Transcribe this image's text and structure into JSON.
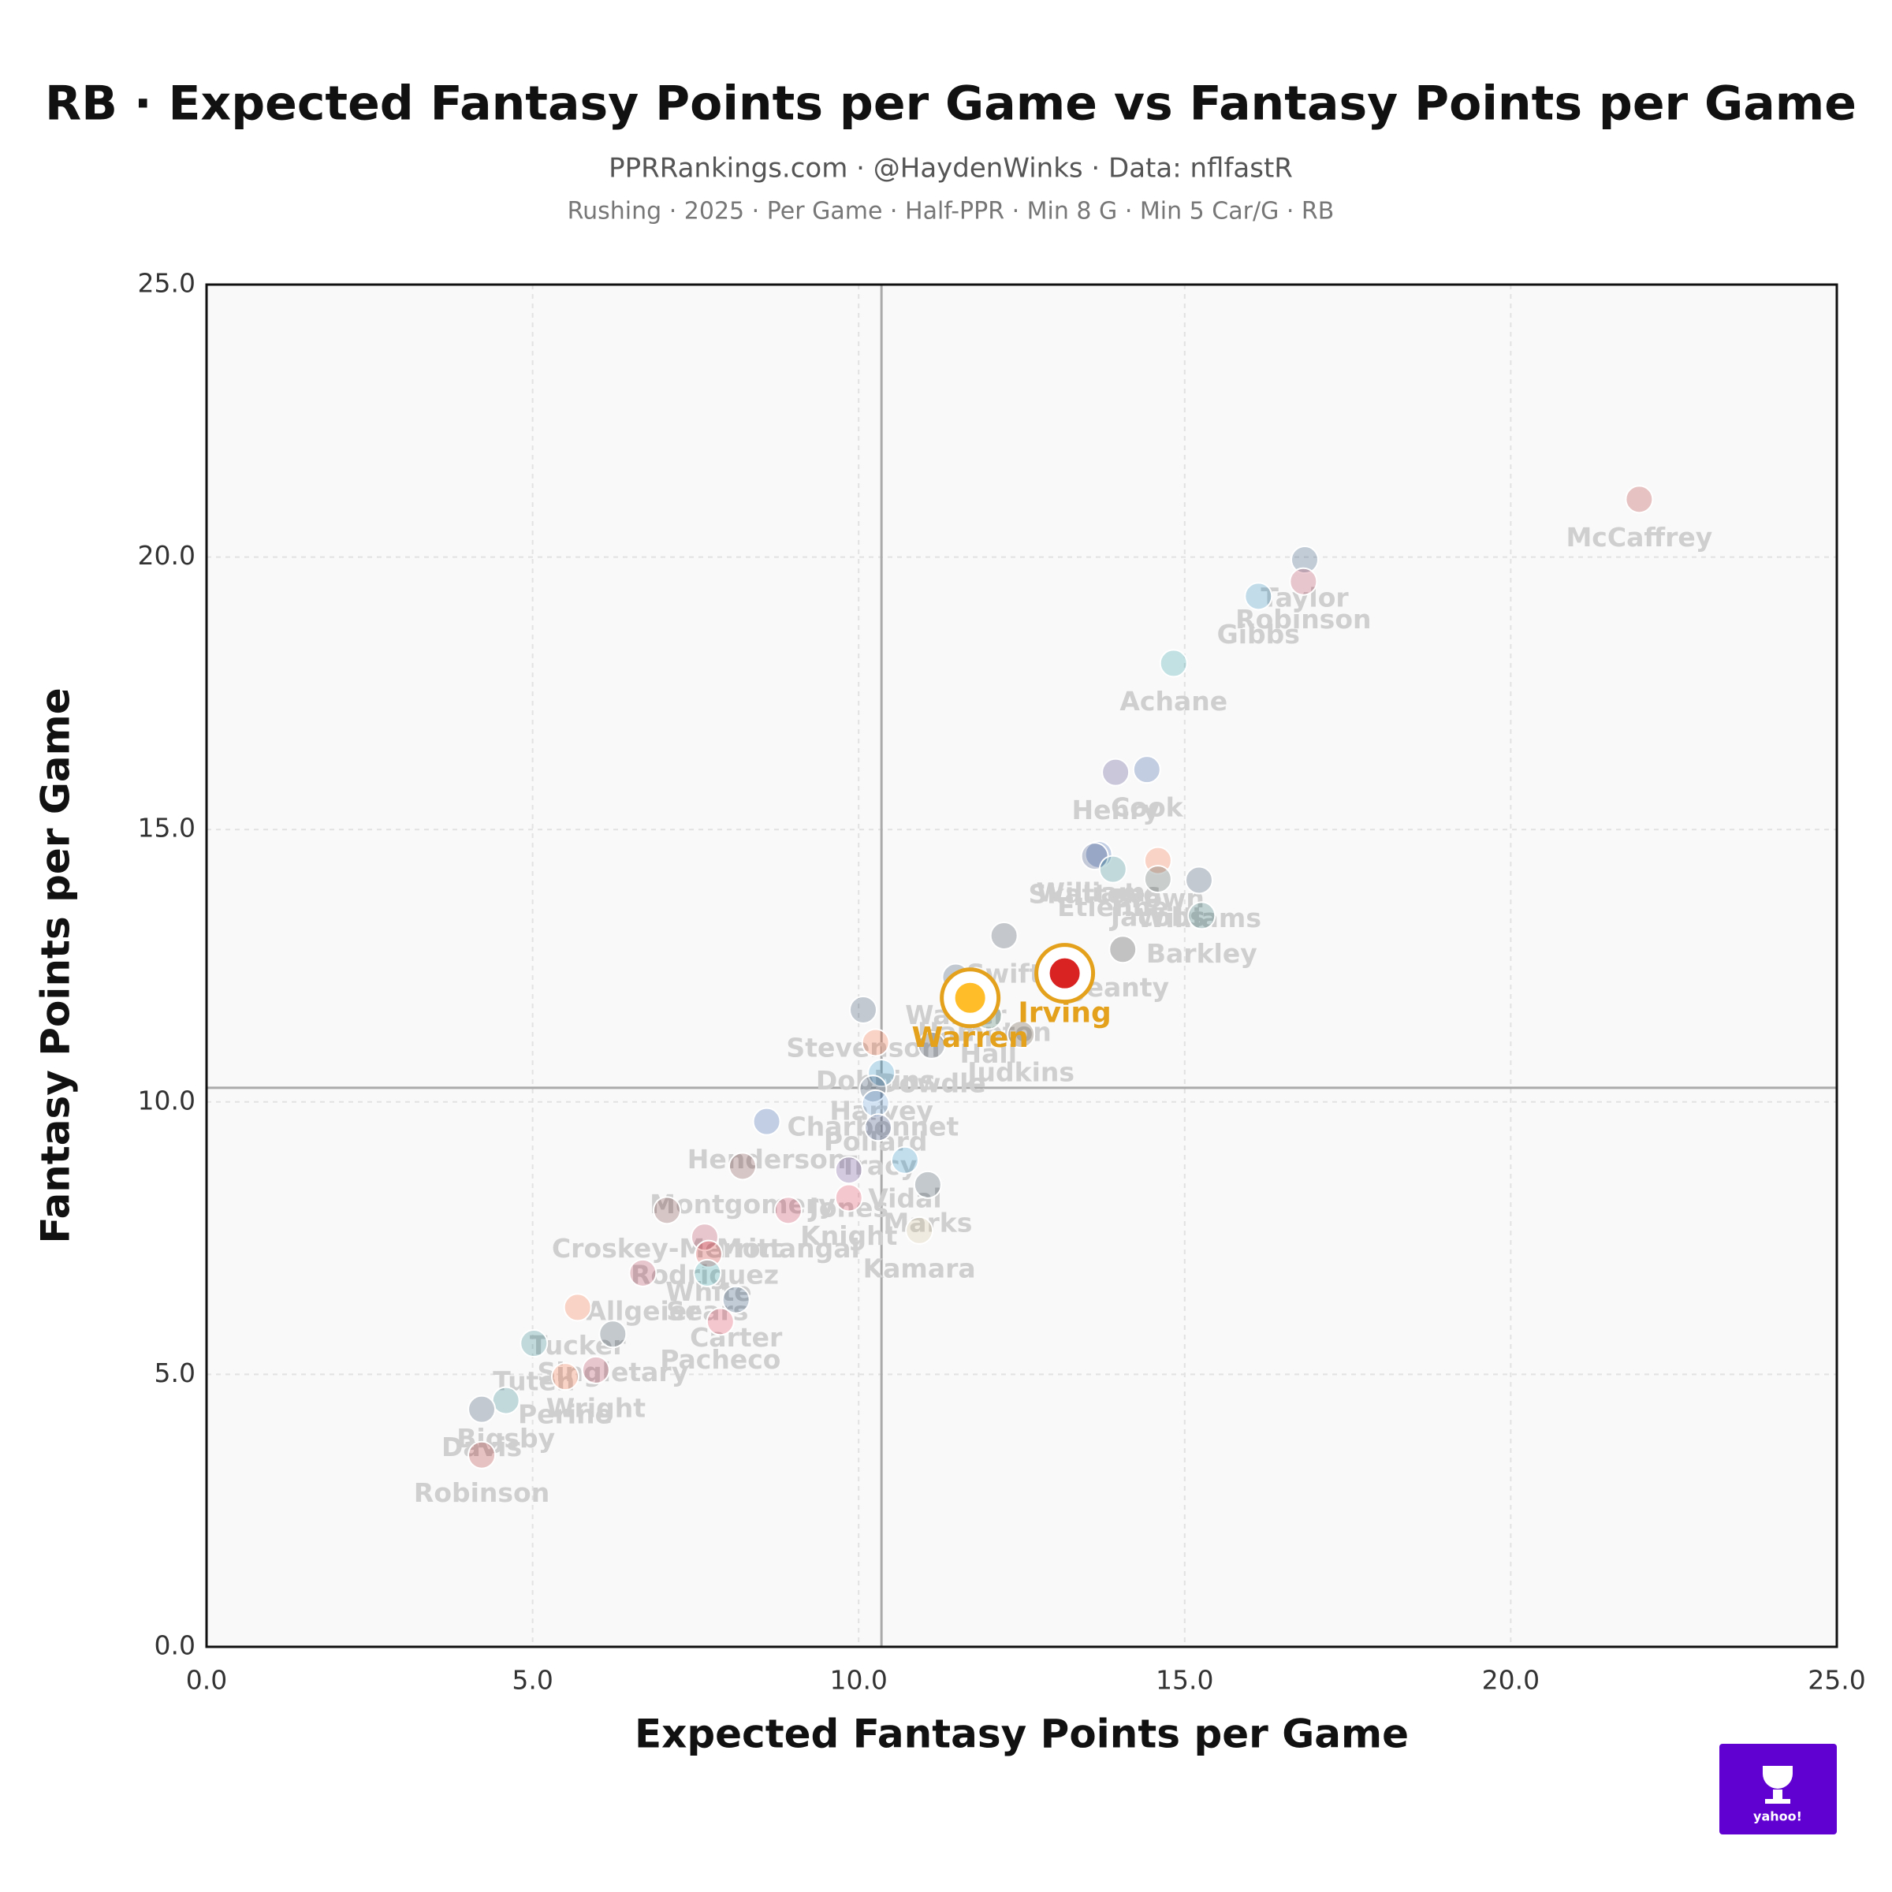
{
  "chart_data": {
    "type": "scatter",
    "title": "RB · Expected Fantasy Points per Game vs Fantasy Points per Game",
    "subtitle": "PPRRankings.com · @HaydenWinks · Data: nflfastR",
    "subtitle2": "Rushing · 2025 · Per Game · Half-PPR · Min 8 G · Min 5 Car/G · RB",
    "x_label": "Expected Fantasy Points per Game",
    "y_label": "Fantasy Points per Game",
    "logo_text": "yahoo!",
    "xlim": [
      0,
      25
    ],
    "ylim": [
      0,
      25
    ],
    "xticks": [
      {
        "value": 0,
        "label": "0.0"
      },
      {
        "value": 5,
        "label": "5.0"
      },
      {
        "value": 10,
        "label": "10.0"
      },
      {
        "value": 15,
        "label": "15.0"
      },
      {
        "value": 20,
        "label": "20.0"
      },
      {
        "value": 25,
        "label": "25.0"
      }
    ],
    "yticks": [
      {
        "value": 0,
        "label": "0.0"
      },
      {
        "value": 5,
        "label": "5.0"
      },
      {
        "value": 10,
        "label": "10.0"
      },
      {
        "value": 15,
        "label": "15.0"
      },
      {
        "value": 20,
        "label": "20.0"
      },
      {
        "value": 25,
        "label": "25.0"
      }
    ],
    "grid": true,
    "x_mean": 10.35,
    "y_mean": 10.26,
    "highlight_color": "#e3a11c",
    "labels": [
      "McCaffrey",
      "Taylor",
      "Robinson",
      "Gibbs",
      "Achane",
      "Henry",
      "Cook",
      "Williams",
      "Skattebo",
      "Etienne",
      "Brown",
      "Jacobs",
      "Williams",
      "Barkley",
      "Jeanty",
      "Swift",
      "Irving",
      "Warren",
      "Walker",
      "Hampton",
      "Hall",
      "Judkins",
      "Stevenson",
      "Dobbins",
      "Dowdle",
      "Harvey",
      "Charbonnet",
      "Pollard",
      "Henderson",
      "Tracy",
      "Vidal",
      "Marks",
      "Kamara",
      "Montgomery",
      "Jones",
      "Knight",
      "Croskey-Merritt",
      "Monangai",
      "Rodriguez",
      "White",
      "Allgeier",
      "Sears",
      "Carter",
      "Pacheco",
      "Tucker",
      "Singletary",
      "Tuten",
      "Wright",
      "Perine",
      "Bigsby",
      "Davis",
      "Robinson"
    ],
    "x": [
      21.97,
      16.84,
      16.82,
      16.13,
      14.83,
      13.94,
      14.42,
      13.68,
      13.62,
      13.9,
      14.59,
      14.59,
      15.22,
      15.26,
      14.05,
      12.23,
      13.16,
      11.71,
      11.49,
      11.93,
      11.99,
      12.49,
      10.07,
      10.26,
      11.12,
      10.35,
      10.22,
      10.26,
      8.59,
      10.3,
      10.71,
      11.06,
      10.93,
      8.22,
      9.85,
      9.85,
      7.06,
      8.92,
      7.64,
      7.7,
      6.69,
      7.68,
      8.12,
      7.88,
      5.69,
      6.23,
      5.02,
      5.97,
      5.5,
      4.59,
      4.22,
      4.22
    ],
    "values": [
      21.06,
      19.95,
      19.55,
      19.28,
      18.05,
      16.05,
      16.1,
      14.54,
      14.51,
      14.27,
      14.43,
      14.09,
      14.07,
      13.42,
      12.8,
      13.05,
      12.36,
      11.91,
      12.29,
      11.98,
      11.58,
      11.24,
      11.69,
      11.09,
      11.04,
      10.53,
      10.24,
      9.97,
      9.64,
      9.53,
      8.93,
      8.48,
      7.64,
      8.82,
      8.75,
      8.24,
      8.01,
      8.01,
      7.52,
      7.21,
      6.86,
      6.86,
      6.37,
      5.97,
      6.23,
      5.74,
      5.57,
      5.08,
      4.96,
      4.52,
      4.36,
      3.52
    ],
    "colors": [
      "#aa0000",
      "#002c5f",
      "#a71930",
      "#0076b6",
      "#008e97",
      "#241773",
      "#00338d",
      "#003594",
      "#0b2265",
      "#006778",
      "#fb4f14",
      "#203731",
      "#041e42",
      "#004c54",
      "#000000",
      "#0b162a",
      "#d50a0a",
      "#ffb612",
      "#002244",
      "#0080c6",
      "#125740",
      "#311d00",
      "#002244",
      "#fb4f14",
      "#0b162a",
      "#0080c6",
      "#002244",
      "#4b92db",
      "#003594",
      "#0b2265",
      "#0080c6",
      "#03202f",
      "#d3bc8d",
      "#5a1414",
      "#4f2683",
      "#e31837",
      "#5a1414",
      "#c60c30",
      "#a71930",
      "#d50a0a",
      "#a71930",
      "#008e97",
      "#002c5f",
      "#e31837",
      "#fb4f14",
      "#03202f",
      "#006778",
      "#a71930",
      "#fb4f14",
      "#006778",
      "#041e42",
      "#aa0000"
    ],
    "highlight": [
      false,
      false,
      false,
      false,
      false,
      false,
      false,
      false,
      false,
      false,
      false,
      false,
      false,
      false,
      false,
      false,
      true,
      true,
      false,
      false,
      false,
      false,
      false,
      false,
      false,
      false,
      false,
      false,
      false,
      false,
      false,
      false,
      false,
      false,
      false,
      false,
      false,
      false,
      false,
      false,
      false,
      false,
      false,
      false,
      false,
      false,
      false,
      false,
      false,
      false,
      false,
      false
    ]
  }
}
